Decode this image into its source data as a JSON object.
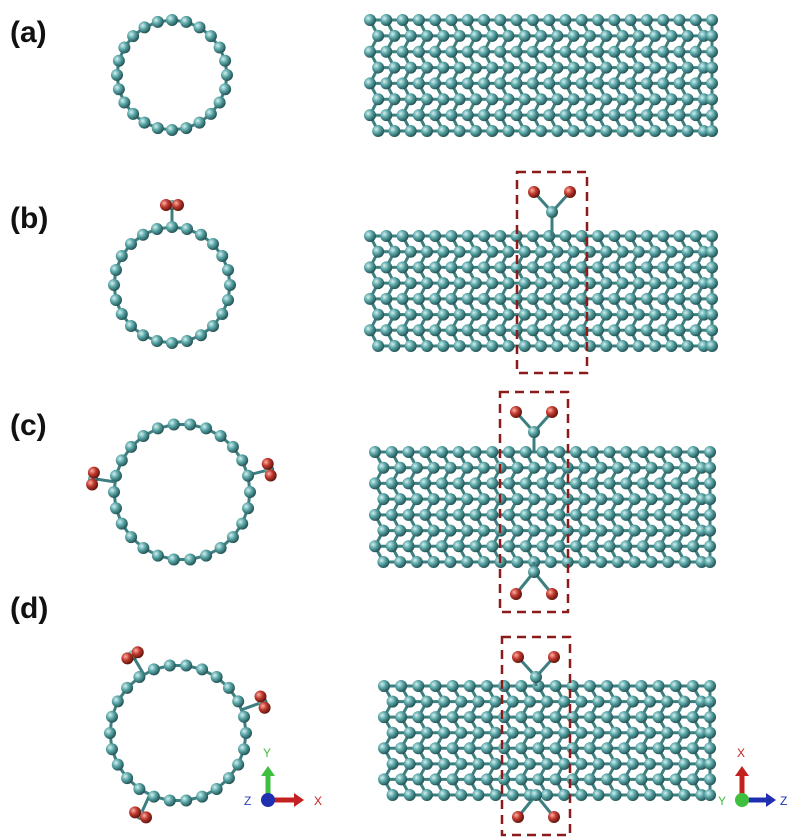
{
  "panels": [
    {
      "label": "(a)"
    },
    {
      "label": "(b)"
    },
    {
      "label": "(c)"
    },
    {
      "label": "(d)"
    }
  ],
  "axes_left": {
    "up": "Y",
    "out": "Z",
    "right": "X"
  },
  "axes_right": {
    "up": "X",
    "out": "Y",
    "right": "Z"
  }
}
